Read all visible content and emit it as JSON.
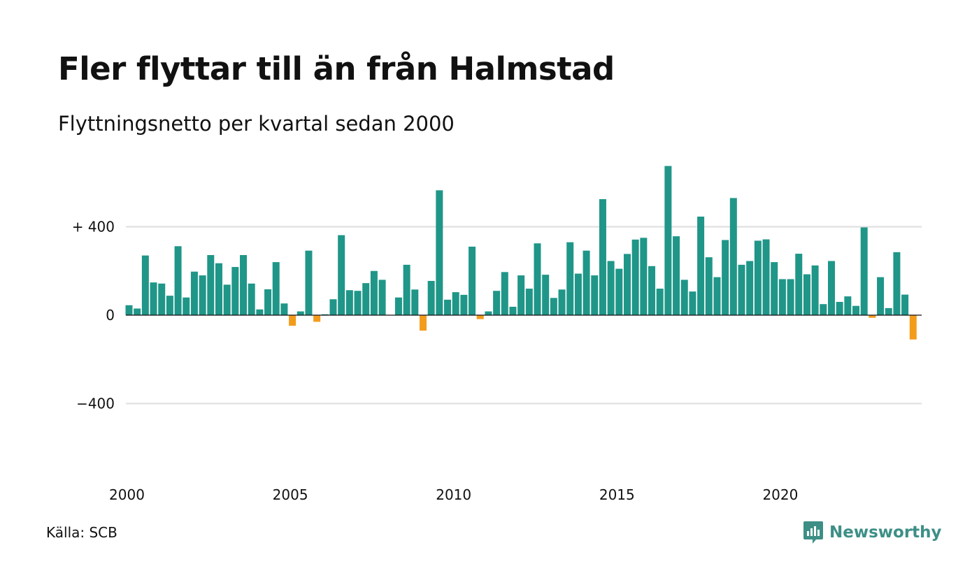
{
  "header": {
    "title": "Fler flyttar till än från Halmstad",
    "subtitle": "Flyttningsnetto per kvartal sedan 2000"
  },
  "footer": {
    "source": "Källa: SCB",
    "brand": "Newsworthy"
  },
  "colors": {
    "positive": "#1f9688",
    "negative": "#f39c1c",
    "grid": "#dddddd",
    "brand": "#3d8f86"
  },
  "icons": {
    "brand_logo": "newsworthy-logo-icon"
  },
  "chart_data": {
    "type": "bar",
    "title": "Fler flyttar till än från Halmstad",
    "subtitle": "Flyttningsnetto per kvartal sedan 2000",
    "x_start": "2000-Q1",
    "x_tick_labels": [
      "2000",
      "2005",
      "2010",
      "2015",
      "2020"
    ],
    "y_tick_labels": [
      "+ 400",
      "0",
      "−400"
    ],
    "y_ticks": [
      400,
      0,
      -400
    ],
    "ylim": [
      -700,
      700
    ],
    "grid": "horizontal",
    "series": [
      {
        "values": [
          45,
          30,
          270,
          148,
          143,
          88,
          312,
          80,
          197,
          180,
          272,
          235,
          138,
          218,
          272,
          143,
          26,
          117,
          240,
          53,
          -48,
          17,
          292,
          -30,
          4,
          72,
          362,
          113,
          110,
          145,
          200,
          160,
          0,
          80,
          228,
          116,
          -70,
          155,
          565,
          70,
          104,
          92,
          310,
          -18,
          17,
          110,
          195,
          38,
          180,
          120,
          325,
          183,
          78,
          116,
          330,
          188,
          292,
          180,
          525,
          245,
          210,
          277,
          342,
          350,
          222,
          120,
          675,
          357,
          160,
          107,
          446,
          262,
          172,
          340,
          530,
          228,
          245,
          337,
          343,
          240,
          163,
          163,
          278,
          185,
          225,
          50,
          245,
          60,
          85,
          42,
          397,
          -12,
          172,
          32,
          285,
          93,
          -110
        ]
      }
    ]
  }
}
